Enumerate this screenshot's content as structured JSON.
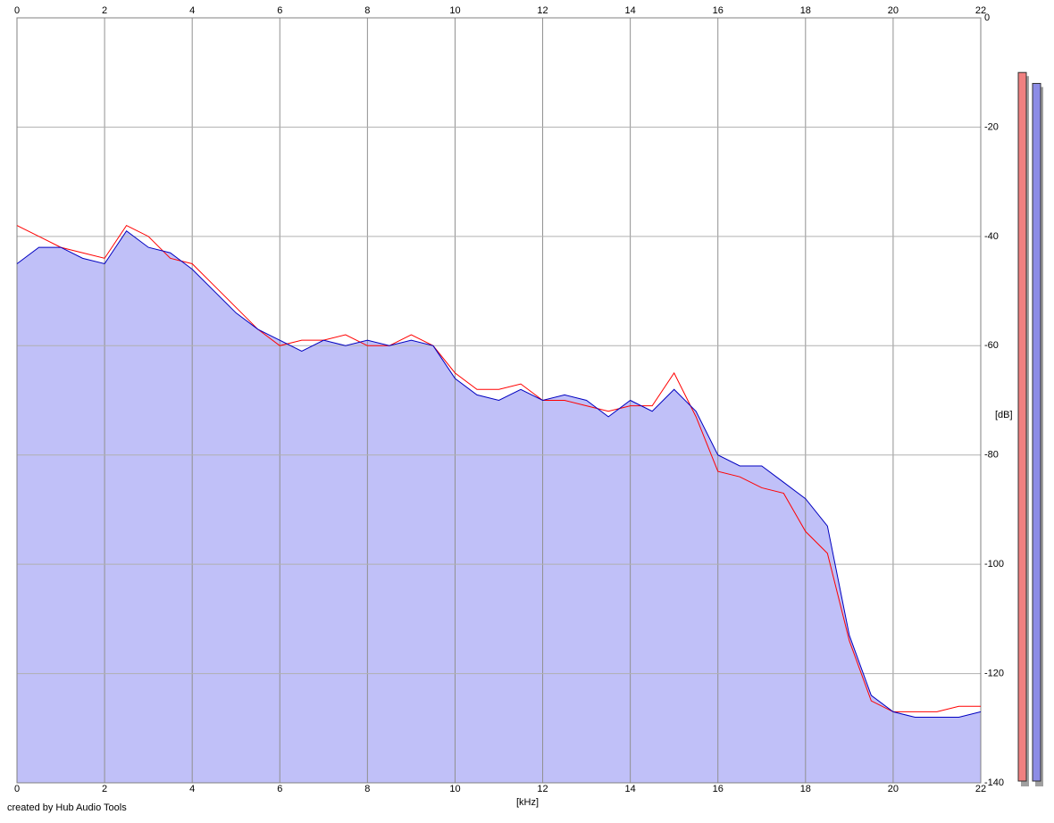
{
  "chart_data": {
    "type": "line",
    "x": [
      0,
      0.5,
      1,
      1.5,
      2,
      2.5,
      3,
      3.5,
      4,
      4.5,
      5,
      5.5,
      6,
      6.5,
      7,
      7.5,
      8,
      8.5,
      9,
      9.5,
      10,
      10.5,
      11,
      11.5,
      12,
      12.5,
      13,
      13.5,
      14,
      14.5,
      15,
      15.5,
      16,
      16.5,
      17,
      17.5,
      18,
      18.5,
      19,
      19.5,
      20,
      20.5,
      21,
      21.5,
      22
    ],
    "series": [
      {
        "color": "#ff0000",
        "values": [
          -38,
          -40,
          -42,
          -43,
          -44,
          -38,
          -40,
          -44,
          -45,
          -49,
          -53,
          -57,
          -60,
          -59,
          -59,
          -58,
          -60,
          -60,
          -58,
          -60,
          -65,
          -68,
          -68,
          -67,
          -70,
          -70,
          -71,
          -72,
          -71,
          -71,
          -65,
          -73,
          -83,
          -84,
          -86,
          -87,
          -94,
          -98,
          -114,
          -125,
          -127,
          -127,
          -127,
          -126,
          -126
        ]
      },
      {
        "color": "#0000c0",
        "fill": "#c0c0f8",
        "values": [
          -45,
          -42,
          -42,
          -44,
          -45,
          -39,
          -42,
          -43,
          -46,
          -50,
          -54,
          -57,
          -59,
          -61,
          -59,
          -60,
          -59,
          -60,
          -59,
          -60,
          -66,
          -69,
          -70,
          -68,
          -70,
          -69,
          -70,
          -73,
          -70,
          -72,
          -68,
          -72,
          -80,
          -82,
          -82,
          -85,
          -88,
          -93,
          -113,
          -124,
          -127,
          -128,
          -128,
          -128,
          -127
        ]
      }
    ],
    "xlim": [
      0,
      22
    ],
    "xticks": [
      0,
      2,
      4,
      6,
      8,
      10,
      12,
      14,
      16,
      18,
      20,
      22
    ],
    "ylim": [
      -140,
      0
    ],
    "yticks": [
      0,
      -20,
      -40,
      -60,
      -80,
      -100,
      -120,
      -140
    ],
    "x_label": "[kHz]",
    "y_label": "[dB]",
    "grid": true,
    "meters": [
      {
        "color": "#f08080",
        "value": -10
      },
      {
        "color": "#8c8ce6",
        "value": -12
      }
    ],
    "footer": "created by Hub Audio Tools"
  }
}
